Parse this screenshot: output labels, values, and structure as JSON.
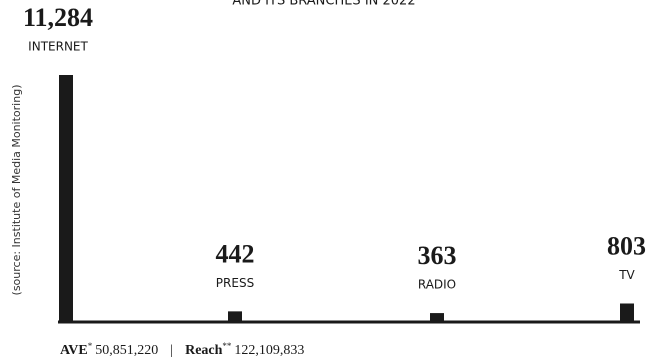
{
  "chart_data": {
    "type": "bar",
    "title": "AND ITS BRANCHES IN 2022",
    "source": "(source: Institute of Media Monitoring)",
    "categories": [
      "INTERNET",
      "PRESS",
      "RADIO",
      "TV"
    ],
    "values": [
      11284,
      442,
      363,
      803
    ],
    "value_labels": [
      "11,284",
      "442",
      "363",
      "803"
    ],
    "color": "#1a1a1a",
    "ylim": [
      0,
      11284
    ],
    "footer": {
      "ave_label": "AVE",
      "ave_mark": "*",
      "ave_value": "50,851,220",
      "separator": "|",
      "reach_label": "Reach",
      "reach_mark": "**",
      "reach_value": "122,109,833"
    }
  }
}
